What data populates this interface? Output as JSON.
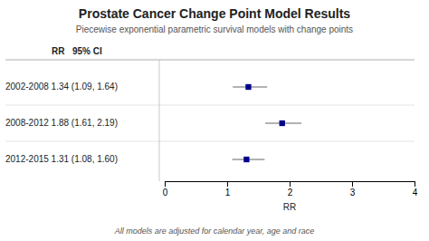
{
  "chart_data": {
    "type": "forest",
    "title": "Prostate Cancer Change Point Model Results",
    "subtitle": "Piecewise exponential parametric survival models with change points",
    "footer": "All models are adjusted for calendar year, age and race",
    "annotations": [
      "RR",
      "95% CI"
    ],
    "categories": [
      "2002-2008 1.34 (1.09, 1.64)",
      "2008-2012 1.88 (1.61, 2.19)",
      "2012-2015 1.31 (1.08, 1.60)"
    ],
    "values": [
      1.34,
      1.88,
      1.31
    ],
    "lo": [
      1.09,
      1.61,
      1.08
    ],
    "hi": [
      1.64,
      2.19,
      1.6
    ],
    "color": "#00008B",
    "marker": "square",
    "xlabel": "RR",
    "xlim": [
      0,
      4
    ],
    "xticks": [
      0,
      1,
      2,
      3,
      4
    ]
  }
}
